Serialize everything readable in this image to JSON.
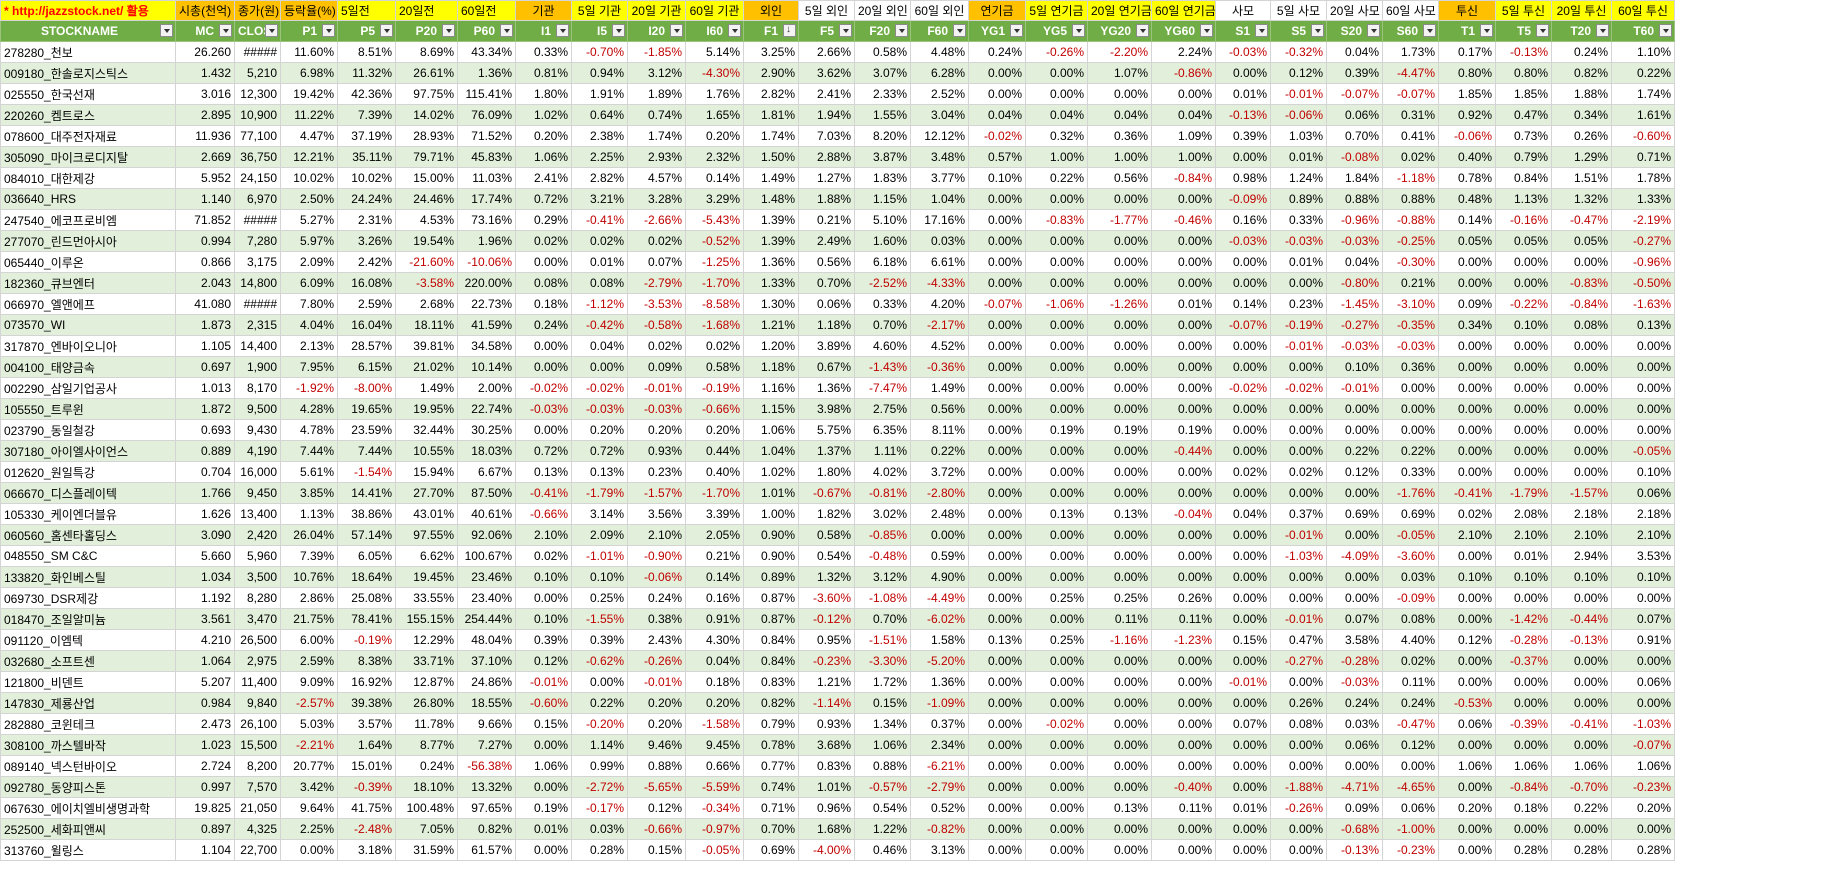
{
  "site_link": "* http://jazzstock.net/ 활용",
  "top_headers": [
    {
      "text": "시총(천억)",
      "c": "o"
    },
    {
      "text": "종가(원)",
      "c": "o"
    },
    {
      "text": "등락율(%)",
      "c": "o"
    },
    {
      "text": "5일전",
      "c": "y"
    },
    {
      "text": "20일전",
      "c": "y"
    },
    {
      "text": "60일전",
      "c": "y"
    },
    {
      "text": "기관",
      "c": "o"
    },
    {
      "text": "5일 기관",
      "c": "y"
    },
    {
      "text": "20일 기관",
      "c": "y"
    },
    {
      "text": "60일 기관",
      "c": "y"
    },
    {
      "text": "외인",
      "c": "o"
    },
    {
      "text": "5일 외인",
      "c": "w"
    },
    {
      "text": "20일 외인",
      "c": "w"
    },
    {
      "text": "60일 외인",
      "c": "w"
    },
    {
      "text": "연기금",
      "c": "o"
    },
    {
      "text": "5일 연기금",
      "c": "y"
    },
    {
      "text": "20일 연기금",
      "c": "y"
    },
    {
      "text": "60일 연기금",
      "c": "y"
    },
    {
      "text": "사모",
      "c": "w"
    },
    {
      "text": "5일 사모",
      "c": "w"
    },
    {
      "text": "20일 사모",
      "c": "w"
    },
    {
      "text": "60일 사모",
      "c": "w"
    },
    {
      "text": "투신",
      "c": "o"
    },
    {
      "text": "5일 투신",
      "c": "y"
    },
    {
      "text": "20일 투신",
      "c": "y"
    },
    {
      "text": "60일 투신",
      "c": "y"
    }
  ],
  "columns": [
    "STOCKNAME",
    "MC",
    "CLOS",
    "P1",
    "P5",
    "P20",
    "P60",
    "I1",
    "I5",
    "I20",
    "I60",
    "F1",
    "F5",
    "F20",
    "F60",
    "YG1",
    "YG5",
    "YG20",
    "YG60",
    "S1",
    "S5",
    "S20",
    "S60",
    "T1",
    "T5",
    "T20",
    "T60"
  ],
  "sorted_column": "F1",
  "rows": [
    [
      "278280_천보",
      "26.260",
      "#####",
      "11.60%",
      "8.51%",
      "8.69%",
      "43.34%",
      "0.33%",
      "-0.70%",
      "-1.85%",
      "5.14%",
      "3.25%",
      "2.66%",
      "0.58%",
      "4.48%",
      "0.24%",
      "-0.26%",
      "-2.20%",
      "2.24%",
      "-0.03%",
      "-0.32%",
      "0.04%",
      "1.73%",
      "0.17%",
      "-0.13%",
      "0.24%",
      "1.10%"
    ],
    [
      "009180_한솔로지스틱스",
      "1.432",
      "5,210",
      "6.98%",
      "11.32%",
      "26.61%",
      "1.36%",
      "0.81%",
      "0.94%",
      "3.12%",
      "-4.30%",
      "2.90%",
      "3.62%",
      "3.07%",
      "6.28%",
      "0.00%",
      "0.00%",
      "1.07%",
      "-0.86%",
      "0.00%",
      "0.12%",
      "0.39%",
      "-4.47%",
      "0.80%",
      "0.80%",
      "0.82%",
      "0.22%"
    ],
    [
      "025550_한국선재",
      "3.016",
      "12,300",
      "19.42%",
      "42.36%",
      "97.75%",
      "115.41%",
      "1.80%",
      "1.91%",
      "1.89%",
      "1.76%",
      "2.82%",
      "2.41%",
      "2.33%",
      "2.52%",
      "0.00%",
      "0.00%",
      "0.00%",
      "0.00%",
      "0.01%",
      "-0.01%",
      "-0.07%",
      "-0.07%",
      "1.85%",
      "1.85%",
      "1.88%",
      "1.74%"
    ],
    [
      "220260_켐트로스",
      "2.895",
      "10,900",
      "11.22%",
      "7.39%",
      "14.02%",
      "76.09%",
      "1.02%",
      "0.64%",
      "0.74%",
      "1.65%",
      "1.81%",
      "1.94%",
      "1.55%",
      "3.04%",
      "0.04%",
      "0.04%",
      "0.04%",
      "0.04%",
      "-0.13%",
      "-0.06%",
      "0.06%",
      "0.31%",
      "0.92%",
      "0.47%",
      "0.34%",
      "1.61%"
    ],
    [
      "078600_대주전자재료",
      "11.936",
      "77,100",
      "4.47%",
      "37.19%",
      "28.93%",
      "71.52%",
      "0.20%",
      "2.38%",
      "1.74%",
      "0.20%",
      "1.74%",
      "7.03%",
      "8.20%",
      "12.12%",
      "-0.02%",
      "0.32%",
      "0.36%",
      "1.09%",
      "0.39%",
      "1.03%",
      "0.70%",
      "0.41%",
      "-0.06%",
      "0.73%",
      "0.26%",
      "-0.60%"
    ],
    [
      "305090_마이크로디지탈",
      "2.669",
      "36,750",
      "12.21%",
      "35.11%",
      "79.71%",
      "45.83%",
      "1.06%",
      "2.25%",
      "2.93%",
      "2.32%",
      "1.50%",
      "2.88%",
      "3.87%",
      "3.48%",
      "0.57%",
      "1.00%",
      "1.00%",
      "1.00%",
      "0.00%",
      "0.01%",
      "-0.08%",
      "0.02%",
      "0.40%",
      "0.79%",
      "1.29%",
      "0.71%"
    ],
    [
      "084010_대한제강",
      "5.952",
      "24,150",
      "10.02%",
      "10.02%",
      "15.00%",
      "11.03%",
      "2.41%",
      "2.82%",
      "4.57%",
      "0.14%",
      "1.49%",
      "1.27%",
      "1.83%",
      "3.77%",
      "0.10%",
      "0.22%",
      "0.56%",
      "-0.84%",
      "0.98%",
      "1.24%",
      "1.84%",
      "-1.18%",
      "0.78%",
      "0.84%",
      "1.51%",
      "1.78%"
    ],
    [
      "036640_HRS",
      "1.140",
      "6,970",
      "2.50%",
      "24.24%",
      "24.46%",
      "17.74%",
      "0.72%",
      "3.21%",
      "3.28%",
      "3.29%",
      "1.48%",
      "1.88%",
      "1.15%",
      "1.04%",
      "0.00%",
      "0.00%",
      "0.00%",
      "0.00%",
      "-0.09%",
      "0.89%",
      "0.88%",
      "0.88%",
      "0.48%",
      "1.13%",
      "1.32%",
      "1.33%"
    ],
    [
      "247540_에코프로비엠",
      "71.852",
      "#####",
      "5.27%",
      "2.31%",
      "4.53%",
      "73.16%",
      "0.29%",
      "-0.41%",
      "-2.66%",
      "-5.43%",
      "1.39%",
      "0.21%",
      "5.10%",
      "17.16%",
      "0.00%",
      "-0.83%",
      "-1.77%",
      "-0.46%",
      "0.16%",
      "0.33%",
      "-0.96%",
      "-0.88%",
      "0.14%",
      "-0.16%",
      "-0.47%",
      "-2.19%"
    ],
    [
      "277070_린드먼아시아",
      "0.994",
      "7,280",
      "5.97%",
      "3.26%",
      "19.54%",
      "1.96%",
      "0.02%",
      "0.02%",
      "0.02%",
      "-0.52%",
      "1.39%",
      "2.49%",
      "1.60%",
      "0.03%",
      "0.00%",
      "0.00%",
      "0.00%",
      "0.00%",
      "-0.03%",
      "-0.03%",
      "-0.03%",
      "-0.25%",
      "0.05%",
      "0.05%",
      "0.05%",
      "-0.27%"
    ],
    [
      "065440_이루온",
      "0.866",
      "3,175",
      "2.09%",
      "2.42%",
      "-21.60%",
      "-10.06%",
      "0.00%",
      "0.01%",
      "0.07%",
      "-1.25%",
      "1.36%",
      "0.56%",
      "6.18%",
      "6.61%",
      "0.00%",
      "0.00%",
      "0.00%",
      "0.00%",
      "0.00%",
      "0.01%",
      "0.04%",
      "-0.30%",
      "0.00%",
      "0.00%",
      "0.00%",
      "-0.96%"
    ],
    [
      "182360_큐브엔터",
      "2.043",
      "14,800",
      "6.09%",
      "16.08%",
      "-3.58%",
      "220.00%",
      "0.08%",
      "0.08%",
      "-2.79%",
      "-1.70%",
      "1.33%",
      "0.70%",
      "-2.52%",
      "-4.33%",
      "0.00%",
      "0.00%",
      "0.00%",
      "0.00%",
      "0.00%",
      "0.00%",
      "-0.80%",
      "0.21%",
      "0.00%",
      "0.00%",
      "-0.83%",
      "-0.50%"
    ],
    [
      "066970_엘앤에프",
      "41.080",
      "#####",
      "7.80%",
      "2.59%",
      "2.68%",
      "22.73%",
      "0.18%",
      "-1.12%",
      "-3.53%",
      "-8.58%",
      "1.30%",
      "0.06%",
      "0.33%",
      "4.20%",
      "-0.07%",
      "-1.06%",
      "-1.26%",
      "0.01%",
      "0.14%",
      "0.23%",
      "-1.45%",
      "-3.10%",
      "0.09%",
      "-0.22%",
      "-0.84%",
      "-1.63%"
    ],
    [
      "073570_WI",
      "1.873",
      "2,315",
      "4.04%",
      "16.04%",
      "18.11%",
      "41.59%",
      "0.24%",
      "-0.42%",
      "-0.58%",
      "-1.68%",
      "1.21%",
      "1.18%",
      "0.70%",
      "-2.17%",
      "0.00%",
      "0.00%",
      "0.00%",
      "0.00%",
      "-0.07%",
      "-0.19%",
      "-0.27%",
      "-0.35%",
      "0.34%",
      "0.10%",
      "0.08%",
      "0.13%"
    ],
    [
      "317870_엔바이오니아",
      "1.105",
      "14,400",
      "2.13%",
      "28.57%",
      "39.81%",
      "34.58%",
      "0.00%",
      "0.04%",
      "0.02%",
      "0.02%",
      "1.20%",
      "3.89%",
      "4.60%",
      "4.52%",
      "0.00%",
      "0.00%",
      "0.00%",
      "0.00%",
      "0.00%",
      "-0.01%",
      "-0.03%",
      "-0.03%",
      "0.00%",
      "0.00%",
      "0.00%",
      "0.00%"
    ],
    [
      "004100_태양금속",
      "0.697",
      "1,900",
      "7.95%",
      "6.15%",
      "21.02%",
      "10.14%",
      "0.00%",
      "0.00%",
      "0.09%",
      "0.58%",
      "1.18%",
      "0.67%",
      "-1.43%",
      "-0.36%",
      "0.00%",
      "0.00%",
      "0.00%",
      "0.00%",
      "0.00%",
      "0.00%",
      "0.10%",
      "0.36%",
      "0.00%",
      "0.00%",
      "0.00%",
      "0.00%"
    ],
    [
      "002290_삼일기업공사",
      "1.013",
      "8,170",
      "-1.92%",
      "-8.00%",
      "1.49%",
      "2.00%",
      "-0.02%",
      "-0.02%",
      "-0.01%",
      "-0.19%",
      "1.16%",
      "1.36%",
      "-7.47%",
      "1.49%",
      "0.00%",
      "0.00%",
      "0.00%",
      "0.00%",
      "-0.02%",
      "-0.02%",
      "-0.01%",
      "0.00%",
      "0.00%",
      "0.00%",
      "0.00%",
      "0.00%"
    ],
    [
      "105550_트루윈",
      "1.872",
      "9,500",
      "4.28%",
      "19.65%",
      "19.95%",
      "22.74%",
      "-0.03%",
      "-0.03%",
      "-0.03%",
      "-0.66%",
      "1.15%",
      "3.98%",
      "2.75%",
      "0.56%",
      "0.00%",
      "0.00%",
      "0.00%",
      "0.00%",
      "0.00%",
      "0.00%",
      "0.00%",
      "0.00%",
      "0.00%",
      "0.00%",
      "0.00%",
      "0.00%"
    ],
    [
      "023790_동일철강",
      "0.693",
      "9,430",
      "4.78%",
      "23.59%",
      "32.44%",
      "30.25%",
      "0.00%",
      "0.20%",
      "0.20%",
      "0.20%",
      "1.06%",
      "5.75%",
      "6.35%",
      "8.11%",
      "0.00%",
      "0.19%",
      "0.19%",
      "0.19%",
      "0.00%",
      "0.00%",
      "0.00%",
      "0.00%",
      "0.00%",
      "0.00%",
      "0.00%",
      "0.00%"
    ],
    [
      "307180_아이엘사이언스",
      "0.889",
      "4,190",
      "7.44%",
      "7.44%",
      "10.55%",
      "18.03%",
      "0.72%",
      "0.72%",
      "0.93%",
      "0.44%",
      "1.04%",
      "1.37%",
      "1.11%",
      "0.22%",
      "0.00%",
      "0.00%",
      "0.00%",
      "-0.44%",
      "0.00%",
      "0.00%",
      "0.22%",
      "0.22%",
      "0.00%",
      "0.00%",
      "0.00%",
      "-0.05%"
    ],
    [
      "012620_원일특강",
      "0.704",
      "16,000",
      "5.61%",
      "-1.54%",
      "15.94%",
      "6.67%",
      "0.13%",
      "0.13%",
      "0.23%",
      "0.40%",
      "1.02%",
      "1.80%",
      "4.02%",
      "3.72%",
      "0.00%",
      "0.00%",
      "0.00%",
      "0.00%",
      "0.02%",
      "0.02%",
      "0.12%",
      "0.33%",
      "0.00%",
      "0.00%",
      "0.00%",
      "0.10%"
    ],
    [
      "066670_디스플레이텍",
      "1.766",
      "9,450",
      "3.85%",
      "14.41%",
      "27.70%",
      "87.50%",
      "-0.41%",
      "-1.79%",
      "-1.57%",
      "-1.70%",
      "1.01%",
      "-0.67%",
      "-0.81%",
      "-2.80%",
      "0.00%",
      "0.00%",
      "0.00%",
      "0.00%",
      "0.00%",
      "0.00%",
      "0.00%",
      "-1.76%",
      "-0.41%",
      "-1.79%",
      "-1.57%",
      "0.06%"
    ],
    [
      "105330_케이엔더블유",
      "1.626",
      "13,400",
      "1.13%",
      "38.86%",
      "43.01%",
      "40.61%",
      "-0.66%",
      "3.14%",
      "3.56%",
      "3.39%",
      "1.00%",
      "1.82%",
      "3.02%",
      "2.48%",
      "0.00%",
      "0.13%",
      "0.13%",
      "-0.04%",
      "0.04%",
      "0.37%",
      "0.69%",
      "0.69%",
      "0.02%",
      "2.08%",
      "2.18%",
      "2.18%"
    ],
    [
      "060560_홈센타홀딩스",
      "3.090",
      "2,420",
      "26.04%",
      "57.14%",
      "97.55%",
      "92.06%",
      "2.10%",
      "2.09%",
      "2.10%",
      "2.05%",
      "0.90%",
      "0.58%",
      "-0.85%",
      "0.00%",
      "0.00%",
      "0.00%",
      "0.00%",
      "0.00%",
      "0.00%",
      "-0.01%",
      "0.00%",
      "-0.05%",
      "2.10%",
      "2.10%",
      "2.10%",
      "2.10%"
    ],
    [
      "048550_SM C&C",
      "5.660",
      "5,960",
      "7.39%",
      "6.05%",
      "6.62%",
      "100.67%",
      "0.02%",
      "-1.01%",
      "-0.90%",
      "0.21%",
      "0.90%",
      "0.54%",
      "-0.48%",
      "0.59%",
      "0.00%",
      "0.00%",
      "0.00%",
      "0.00%",
      "0.00%",
      "-1.03%",
      "-4.09%",
      "-3.60%",
      "0.00%",
      "0.01%",
      "2.94%",
      "3.53%"
    ],
    [
      "133820_화인베스틸",
      "1.034",
      "3,500",
      "10.76%",
      "18.64%",
      "19.45%",
      "23.46%",
      "0.10%",
      "0.10%",
      "-0.06%",
      "0.14%",
      "0.89%",
      "1.32%",
      "3.12%",
      "4.90%",
      "0.00%",
      "0.00%",
      "0.00%",
      "0.00%",
      "0.00%",
      "0.00%",
      "0.00%",
      "0.03%",
      "0.10%",
      "0.10%",
      "0.10%",
      "0.10%"
    ],
    [
      "069730_DSR제강",
      "1.192",
      "8,280",
      "2.86%",
      "25.08%",
      "33.55%",
      "23.40%",
      "0.00%",
      "0.25%",
      "0.24%",
      "0.16%",
      "0.87%",
      "-3.60%",
      "-1.08%",
      "-4.49%",
      "0.00%",
      "0.25%",
      "0.25%",
      "0.26%",
      "0.00%",
      "0.00%",
      "0.00%",
      "-0.09%",
      "0.00%",
      "0.00%",
      "0.00%",
      "0.00%"
    ],
    [
      "018470_조일알미늄",
      "3.561",
      "3,470",
      "21.75%",
      "78.41%",
      "155.15%",
      "254.44%",
      "0.10%",
      "-1.55%",
      "0.38%",
      "0.91%",
      "0.87%",
      "-0.12%",
      "0.70%",
      "-6.02%",
      "0.00%",
      "0.00%",
      "0.11%",
      "0.11%",
      "0.00%",
      "-0.01%",
      "0.07%",
      "0.08%",
      "0.00%",
      "-1.42%",
      "-0.44%",
      "0.07%"
    ],
    [
      "091120_이엠텍",
      "4.210",
      "26,500",
      "6.00%",
      "-0.19%",
      "12.29%",
      "48.04%",
      "0.39%",
      "0.39%",
      "2.43%",
      "4.30%",
      "0.84%",
      "0.95%",
      "-1.51%",
      "1.58%",
      "0.13%",
      "0.25%",
      "-1.16%",
      "-1.23%",
      "0.15%",
      "0.47%",
      "3.58%",
      "4.40%",
      "0.12%",
      "-0.28%",
      "-0.13%",
      "0.91%"
    ],
    [
      "032680_소프트센",
      "1.064",
      "2,975",
      "2.59%",
      "8.38%",
      "33.71%",
      "37.10%",
      "0.12%",
      "-0.62%",
      "-0.26%",
      "0.04%",
      "0.84%",
      "-0.23%",
      "-3.30%",
      "-5.20%",
      "0.00%",
      "0.00%",
      "0.00%",
      "0.00%",
      "0.00%",
      "-0.27%",
      "-0.28%",
      "0.02%",
      "0.00%",
      "-0.37%",
      "0.00%",
      "0.00%"
    ],
    [
      "121800_비덴트",
      "5.207",
      "11,400",
      "9.09%",
      "16.92%",
      "12.87%",
      "24.86%",
      "-0.01%",
      "0.00%",
      "-0.01%",
      "0.18%",
      "0.83%",
      "1.21%",
      "1.72%",
      "1.36%",
      "0.00%",
      "0.00%",
      "0.00%",
      "0.00%",
      "-0.01%",
      "0.00%",
      "-0.03%",
      "0.11%",
      "0.00%",
      "0.00%",
      "0.00%",
      "0.06%"
    ],
    [
      "147830_제룡산업",
      "0.984",
      "9,840",
      "-2.57%",
      "39.38%",
      "26.80%",
      "18.55%",
      "-0.60%",
      "0.22%",
      "0.20%",
      "0.20%",
      "0.82%",
      "-1.14%",
      "0.15%",
      "-1.09%",
      "0.00%",
      "0.00%",
      "0.00%",
      "0.00%",
      "0.00%",
      "0.26%",
      "0.24%",
      "0.24%",
      "-0.53%",
      "0.00%",
      "0.00%",
      "0.00%"
    ],
    [
      "282880_코윈테크",
      "2.473",
      "26,100",
      "5.03%",
      "3.57%",
      "11.78%",
      "9.66%",
      "0.15%",
      "-0.20%",
      "0.20%",
      "-1.58%",
      "0.79%",
      "0.93%",
      "1.34%",
      "0.37%",
      "0.00%",
      "-0.02%",
      "0.00%",
      "0.00%",
      "0.07%",
      "0.08%",
      "0.03%",
      "-0.47%",
      "0.06%",
      "-0.39%",
      "-0.41%",
      "-1.03%"
    ],
    [
      "308100_까스텔바작",
      "1.023",
      "15,500",
      "-2.21%",
      "1.64%",
      "8.77%",
      "7.27%",
      "0.00%",
      "1.14%",
      "9.46%",
      "9.45%",
      "0.78%",
      "3.68%",
      "1.06%",
      "2.34%",
      "0.00%",
      "0.00%",
      "0.00%",
      "0.00%",
      "0.00%",
      "0.00%",
      "0.06%",
      "0.12%",
      "0.00%",
      "0.00%",
      "0.00%",
      "-0.07%"
    ],
    [
      "089140_넥스턴바이오",
      "2.724",
      "8,200",
      "20.77%",
      "15.01%",
      "0.24%",
      "-56.38%",
      "1.06%",
      "0.99%",
      "0.88%",
      "0.66%",
      "0.77%",
      "0.83%",
      "0.88%",
      "-6.21%",
      "0.00%",
      "0.00%",
      "0.00%",
      "0.00%",
      "0.00%",
      "0.00%",
      "0.00%",
      "0.00%",
      "1.06%",
      "1.06%",
      "1.06%",
      "1.06%"
    ],
    [
      "092780_동양피스톤",
      "0.997",
      "7,570",
      "3.42%",
      "-0.39%",
      "18.10%",
      "13.32%",
      "0.00%",
      "-2.72%",
      "-5.65%",
      "-5.59%",
      "0.74%",
      "1.01%",
      "-0.57%",
      "-2.79%",
      "0.00%",
      "0.00%",
      "0.00%",
      "-0.40%",
      "0.00%",
      "-1.88%",
      "-4.71%",
      "-4.65%",
      "0.00%",
      "-0.84%",
      "-0.70%",
      "-0.23%"
    ],
    [
      "067630_에이치엘비생명과학",
      "19.825",
      "21,050",
      "9.64%",
      "41.75%",
      "100.48%",
      "97.65%",
      "0.19%",
      "-0.17%",
      "0.12%",
      "-0.34%",
      "0.71%",
      "0.96%",
      "0.54%",
      "0.52%",
      "0.00%",
      "0.00%",
      "0.13%",
      "0.11%",
      "0.01%",
      "-0.26%",
      "0.09%",
      "0.06%",
      "0.20%",
      "0.18%",
      "0.22%",
      "0.20%"
    ],
    [
      "252500_세화피앤씨",
      "0.897",
      "4,325",
      "2.25%",
      "-2.48%",
      "7.05%",
      "0.82%",
      "0.01%",
      "0.03%",
      "-0.66%",
      "-0.97%",
      "0.70%",
      "1.68%",
      "1.22%",
      "-0.82%",
      "0.00%",
      "0.00%",
      "0.00%",
      "0.00%",
      "0.00%",
      "0.00%",
      "-0.68%",
      "-1.00%",
      "0.00%",
      "0.00%",
      "0.00%",
      "0.00%"
    ],
    [
      "313760_윌링스",
      "1.104",
      "22,700",
      "0.00%",
      "3.18%",
      "31.59%",
      "61.57%",
      "0.00%",
      "0.28%",
      "0.15%",
      "-0.05%",
      "0.69%",
      "-4.00%",
      "0.46%",
      "3.13%",
      "0.00%",
      "0.00%",
      "0.00%",
      "0.00%",
      "0.00%",
      "0.00%",
      "-0.13%",
      "-0.23%",
      "0.00%",
      "0.28%",
      "0.28%",
      "0.28%"
    ]
  ],
  "colors": {
    "header_green": "#70ad47",
    "band_green": "#e2efda",
    "yellow": "#ffff00",
    "orange": "#ffc000",
    "negative_red": "#c00000",
    "link_red": "#ff0000"
  }
}
